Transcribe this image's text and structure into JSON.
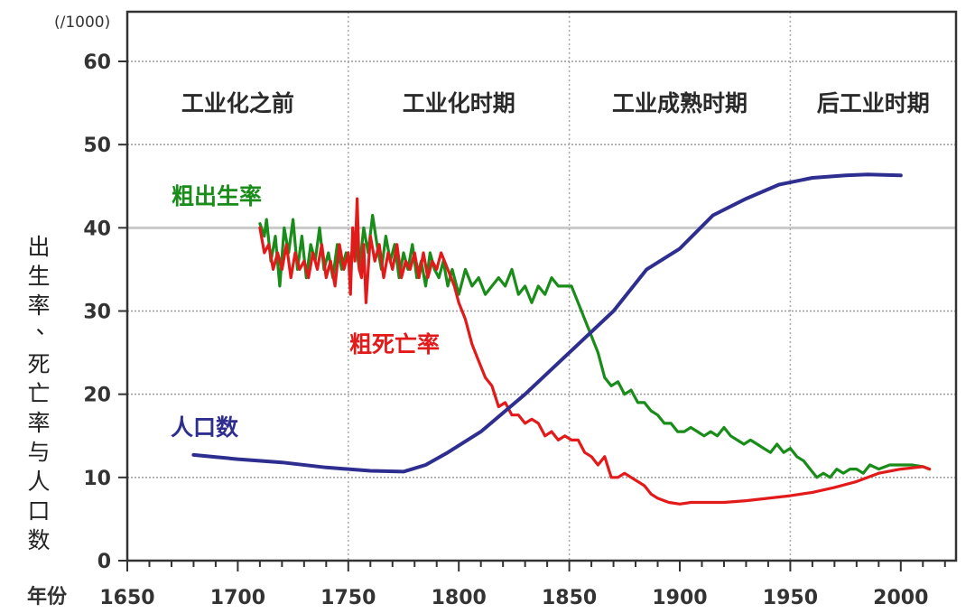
{
  "chart_data": {
    "type": "line",
    "unit_label": "(/1000)",
    "y_axis_label": "出生率、死亡率与人口数",
    "x_axis_label": "年份",
    "xlim": [
      1650,
      2025
    ],
    "ylim": [
      0,
      60
    ],
    "x_ticks": [
      "1650",
      "1700",
      "1750",
      "1800",
      "1850",
      "1900",
      "1950",
      "2000"
    ],
    "y_ticks": [
      "0",
      "10",
      "20",
      "30",
      "40",
      "50",
      "60"
    ],
    "grid": true,
    "eras": [
      {
        "label": "工业化之前",
        "start": 1650,
        "end": 1750
      },
      {
        "label": "工业化时期",
        "start": 1750,
        "end": 1850
      },
      {
        "label": "工业成熟时期",
        "start": 1850,
        "end": 1950
      },
      {
        "label": "后工业时期",
        "start": 1950,
        "end": 2025
      }
    ],
    "series": [
      {
        "name": "粗出生率",
        "color": "#1a8c1a",
        "x": [
          1710,
          1712,
          1713,
          1715,
          1717,
          1719,
          1721,
          1723,
          1725,
          1727,
          1729,
          1731,
          1733,
          1735,
          1737,
          1739,
          1741,
          1743,
          1745,
          1747,
          1749,
          1751,
          1753,
          1755,
          1757,
          1759,
          1761,
          1763,
          1765,
          1767,
          1769,
          1771,
          1773,
          1775,
          1777,
          1779,
          1781,
          1783,
          1785,
          1787,
          1789,
          1791,
          1793,
          1795,
          1797,
          1800,
          1803,
          1806,
          1809,
          1812,
          1815,
          1818,
          1821,
          1824,
          1827,
          1830,
          1833,
          1836,
          1839,
          1842,
          1845,
          1848,
          1851,
          1854,
          1857,
          1860,
          1863,
          1866,
          1869,
          1872,
          1875,
          1878,
          1881,
          1884,
          1887,
          1890,
          1893,
          1896,
          1899,
          1902,
          1905,
          1908,
          1911,
          1914,
          1917,
          1920,
          1923,
          1926,
          1929,
          1932,
          1935,
          1938,
          1941,
          1944,
          1947,
          1950,
          1953,
          1956,
          1959,
          1962,
          1965,
          1968,
          1971,
          1974,
          1977,
          1980,
          1983,
          1986,
          1990,
          1995,
          2000,
          2005,
          2010,
          2013
        ],
        "y": [
          40.5,
          39,
          41,
          36,
          39,
          33,
          40,
          37,
          41,
          35,
          39,
          34,
          38,
          36,
          40,
          35,
          37,
          34,
          38,
          35,
          37,
          36,
          39,
          35,
          40,
          37,
          41.5,
          38,
          35,
          39,
          36,
          38,
          34,
          37,
          35,
          38,
          34,
          36,
          33,
          37,
          35,
          34,
          36,
          33,
          35,
          32,
          35,
          33,
          34,
          32,
          33,
          34,
          33,
          35,
          32,
          33,
          31,
          33,
          32,
          34,
          33,
          33,
          33,
          31,
          29,
          27,
          25,
          22,
          21,
          21.5,
          20,
          20.5,
          19,
          19,
          18,
          17.5,
          16.5,
          16.5,
          15.5,
          15.5,
          16,
          15.5,
          15,
          15.5,
          15,
          16,
          15,
          14.5,
          14,
          14.5,
          14,
          13.5,
          13,
          14,
          13,
          13.5,
          12.5,
          12,
          11,
          10,
          10.5,
          10,
          11,
          10.5,
          11,
          11,
          10.5,
          11.5,
          11,
          11.5,
          11.5,
          11.5,
          11.3,
          11
        ]
      },
      {
        "name": "粗死亡率",
        "color": "#e31a1a",
        "x": [
          1710,
          1712,
          1714,
          1716,
          1718,
          1720,
          1722,
          1724,
          1726,
          1728,
          1730,
          1732,
          1734,
          1736,
          1738,
          1740,
          1742,
          1744,
          1746,
          1748,
          1750,
          1751,
          1752,
          1753,
          1754,
          1755,
          1756,
          1757,
          1758,
          1760,
          1762,
          1764,
          1766,
          1768,
          1770,
          1772,
          1774,
          1776,
          1778,
          1780,
          1782,
          1784,
          1786,
          1788,
          1790,
          1792,
          1795,
          1798,
          1800,
          1803,
          1806,
          1809,
          1812,
          1815,
          1818,
          1821,
          1824,
          1827,
          1830,
          1833,
          1836,
          1839,
          1842,
          1845,
          1848,
          1851,
          1854,
          1857,
          1860,
          1863,
          1866,
          1869,
          1872,
          1875,
          1878,
          1881,
          1884,
          1887,
          1890,
          1895,
          1900,
          1905,
          1910,
          1920,
          1930,
          1940,
          1950,
          1960,
          1970,
          1980,
          1990,
          2000,
          2010,
          2013
        ],
        "y": [
          40,
          37,
          38,
          35,
          37,
          35,
          38,
          34,
          37,
          35,
          36,
          34,
          37,
          35,
          38,
          34,
          36,
          33,
          38,
          35,
          37,
          32,
          40,
          36,
          43.5,
          35,
          34,
          38,
          31,
          39,
          36,
          38,
          34,
          37,
          35,
          38,
          34,
          36,
          35,
          37,
          34,
          37,
          34,
          36,
          35,
          37,
          35,
          33,
          31,
          29,
          26,
          24,
          22,
          21,
          18.5,
          19,
          17.5,
          17.5,
          16.5,
          17,
          16.5,
          15,
          15.5,
          14.5,
          15,
          14.5,
          14.5,
          13,
          12.5,
          11.5,
          12.5,
          10,
          10,
          10.5,
          10,
          9.5,
          9,
          8,
          7.5,
          7,
          6.8,
          7,
          7,
          7,
          7.2,
          7.5,
          7.8,
          8.2,
          8.8,
          9.5,
          10.5,
          11,
          11.3,
          11
        ]
      },
      {
        "name": "人口数",
        "color": "#2d2e8f",
        "x": [
          1680,
          1700,
          1720,
          1740,
          1760,
          1775,
          1785,
          1795,
          1810,
          1830,
          1850,
          1870,
          1885,
          1900,
          1915,
          1930,
          1945,
          1960,
          1975,
          1985,
          2000
        ],
        "y": [
          12.7,
          12.2,
          11.8,
          11.2,
          10.8,
          10.7,
          11.5,
          13,
          15.5,
          20,
          25,
          30,
          35,
          37.5,
          41.5,
          43.5,
          45.2,
          46,
          46.3,
          46.4,
          46.3
        ]
      }
    ],
    "series_label_text": {
      "birth": "粗出生率",
      "death": "粗死亡率",
      "population": "人口数"
    }
  }
}
